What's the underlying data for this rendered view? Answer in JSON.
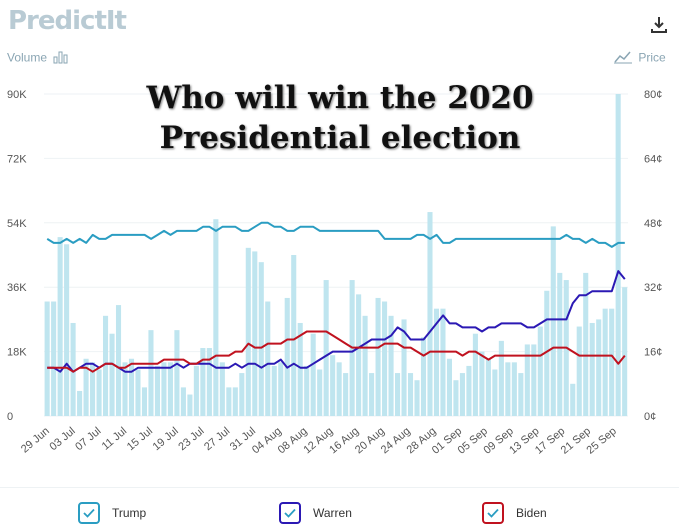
{
  "header": {
    "logo_text": "PredictIt",
    "download_icon": "download-icon",
    "volume_label": "Volume",
    "volume_icon": "bar-chart-icon",
    "price_label": "Price",
    "price_icon": "line-chart-icon"
  },
  "title_line1": "Who will win the 2020",
  "title_line2": "Presidential election",
  "legend": [
    {
      "label": "Trump",
      "color": "#2a9dc2"
    },
    {
      "label": "Warren",
      "color": "#2b19b4"
    },
    {
      "label": "Biden",
      "color": "#c0121f"
    }
  ],
  "chart_data": {
    "type": "bar+line",
    "y_left_ticks": [
      "0",
      "18K",
      "36K",
      "54K",
      "72K",
      "90K"
    ],
    "y_left_range": [
      0,
      90000
    ],
    "y_right_ticks": [
      "0¢",
      "16¢",
      "32¢",
      "48¢",
      "64¢",
      "80¢"
    ],
    "y_right_range": [
      0,
      80
    ],
    "x_tick_labels": [
      "29 Jun",
      "03 Jul",
      "07 Jul",
      "11 Jul",
      "15 Jul",
      "19 Jul",
      "23 Jul",
      "27 Jul",
      "31 Jul",
      "04 Aug",
      "08 Aug",
      "12 Aug",
      "16 Aug",
      "20 Aug",
      "24 Aug",
      "28 Aug",
      "01 Sep",
      "05 Sep",
      "09 Sep",
      "13 Sep",
      "17 Sep",
      "21 Sep",
      "25 Sep"
    ],
    "volume_color": "#bfe5ef",
    "volume": [
      32000,
      32000,
      50000,
      48000,
      26000,
      7000,
      16000,
      15000,
      13000,
      28000,
      23000,
      31000,
      15000,
      16000,
      13000,
      8000,
      24000,
      14000,
      15000,
      15000,
      24000,
      8000,
      6000,
      14000,
      19000,
      19000,
      55000,
      15000,
      8000,
      8000,
      12000,
      47000,
      46000,
      43000,
      32000,
      14000,
      15000,
      33000,
      45000,
      26000,
      14000,
      23000,
      13000,
      38000,
      17000,
      15000,
      12000,
      38000,
      34000,
      28000,
      12000,
      33000,
      32000,
      28000,
      12000,
      27000,
      12000,
      10000,
      22000,
      57000,
      30000,
      30000,
      16000,
      10000,
      12000,
      14000,
      23000,
      18000,
      16000,
      13000,
      21000,
      15000,
      15000,
      12000,
      20000,
      20000,
      25000,
      35000,
      53000,
      40000,
      38000,
      9000,
      25000,
      40000,
      26000,
      27000,
      30000,
      30000,
      90000,
      36000
    ],
    "series": [
      {
        "name": "Trump",
        "color": "#2a9dc2",
        "values": [
          44,
          43,
          43,
          44,
          43,
          44,
          43,
          45,
          44,
          44,
          45,
          45,
          45,
          45,
          45,
          45,
          44,
          45,
          46,
          45,
          46,
          46,
          46,
          46,
          47,
          47,
          46,
          47,
          47,
          47,
          46,
          46,
          47,
          48,
          48,
          47,
          47,
          46,
          46,
          47,
          47,
          47,
          46,
          46,
          46,
          46,
          46,
          46,
          46,
          46,
          46,
          46,
          44,
          44,
          44,
          44,
          44,
          45,
          45,
          44,
          45,
          43,
          43,
          44,
          44,
          44,
          44,
          44,
          44,
          44,
          44,
          44,
          44,
          44,
          44,
          44,
          44,
          44,
          44,
          44,
          45,
          44,
          44,
          43,
          44,
          43,
          43,
          42,
          43,
          43
        ]
      },
      {
        "name": "Warren",
        "color": "#2b19b4",
        "values": [
          12,
          12,
          11,
          13,
          11,
          12,
          13,
          13,
          12,
          13,
          13,
          12,
          11,
          11,
          12,
          12,
          12,
          12,
          12,
          12,
          13,
          12,
          13,
          13,
          13,
          13,
          12,
          12,
          12,
          13,
          12,
          13,
          13,
          12,
          13,
          13,
          14,
          12,
          13,
          12,
          12,
          13,
          14,
          15,
          16,
          16,
          16,
          16,
          17,
          18,
          19,
          19,
          19,
          20,
          22,
          21,
          19,
          19,
          19,
          21,
          23,
          25,
          23,
          23,
          22,
          22,
          22,
          21,
          22,
          22,
          23,
          23,
          23,
          23,
          22,
          22,
          23,
          24,
          24,
          24,
          24,
          28,
          30,
          30,
          31,
          31,
          31,
          31,
          36,
          34
        ]
      },
      {
        "name": "Biden",
        "color": "#c0121f",
        "values": [
          12,
          12,
          12,
          12,
          11,
          12,
          12,
          11,
          12,
          13,
          13,
          12,
          12,
          13,
          13,
          13,
          13,
          13,
          14,
          14,
          14,
          14,
          13,
          13,
          14,
          14,
          15,
          15,
          15,
          16,
          16,
          18,
          17,
          17,
          18,
          18,
          18,
          19,
          19,
          20,
          21,
          21,
          21,
          21,
          20,
          19,
          18,
          17,
          17,
          17,
          17,
          17,
          18,
          18,
          18,
          17,
          17,
          16,
          15,
          16,
          16,
          16,
          16,
          16,
          15,
          16,
          16,
          15,
          14,
          15,
          15,
          15,
          15,
          15,
          15,
          15,
          15,
          16,
          17,
          17,
          17,
          16,
          15,
          15,
          15,
          15,
          15,
          15,
          13,
          15
        ]
      }
    ]
  }
}
